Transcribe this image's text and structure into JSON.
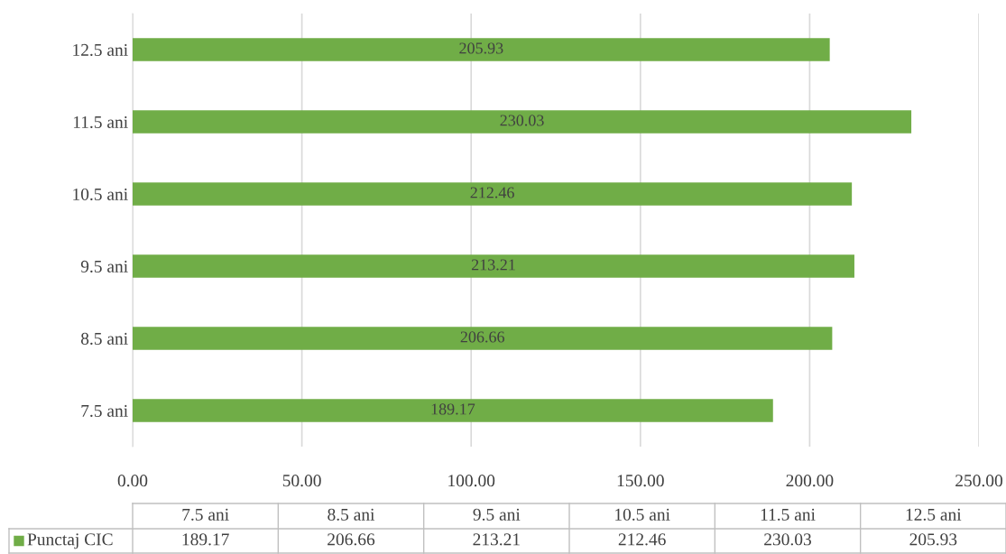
{
  "chart_data": {
    "type": "bar",
    "orientation": "horizontal",
    "categories": [
      "12.5 ani",
      "11.5 ani",
      "10.5 ani",
      "9.5 ani",
      "8.5 ani",
      "7.5 ani"
    ],
    "series": [
      {
        "name": "Punctaj CIC",
        "color": "#70ad47",
        "values": [
          205.93,
          230.03,
          212.46,
          213.21,
          206.66,
          189.17
        ]
      }
    ],
    "xlim": [
      0,
      250
    ],
    "xticks": [
      {
        "value": 0,
        "label": "0.00"
      },
      {
        "value": 50,
        "label": "50.00"
      },
      {
        "value": 100,
        "label": "100.00"
      },
      {
        "value": 150,
        "label": "150.00"
      },
      {
        "value": 200,
        "label": "200.00"
      },
      {
        "value": 250,
        "label": "250.00"
      }
    ],
    "grid": "x",
    "data_labels": true,
    "legend": "bottom",
    "annotations": [
      "189.17",
      "206.66",
      "213.21",
      "212.46",
      "230.03",
      "205.93"
    ]
  }
}
